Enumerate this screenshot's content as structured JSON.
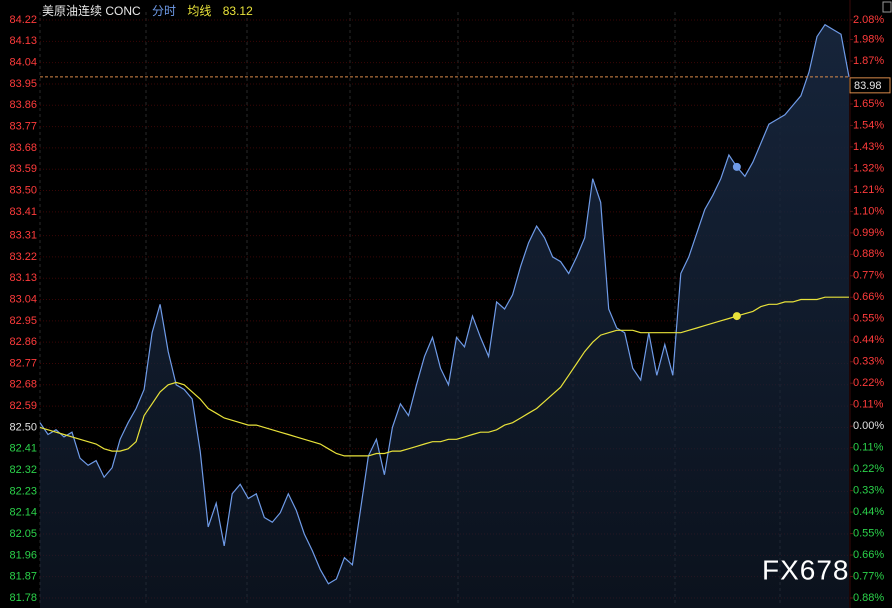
{
  "chart_data": {
    "type": "line",
    "title": "美原油连续 CONC",
    "legend_value": 83.12,
    "last_price": 83.98,
    "watermark": "FX678",
    "up_color": "#ff3b3b",
    "down_color": "#2bd24a",
    "flat_color": "#e0e0e0",
    "fill_color": "#16243a",
    "ylim": [
      81.78,
      84.22
    ],
    "yticks": [
      84.22,
      84.13,
      84.04,
      83.95,
      83.86,
      83.77,
      83.68,
      83.59,
      {
        "value": 83.5,
        "label": "83.50"
      },
      83.41,
      83.31,
      83.22,
      83.13,
      83.04,
      82.95,
      82.86,
      82.77,
      82.68,
      82.59,
      {
        "value": 82.5,
        "label": "82.50"
      },
      82.41,
      82.32,
      82.23,
      82.14,
      82.05,
      81.96,
      81.87,
      81.78
    ],
    "y2lim": [
      -0.88,
      2.08
    ],
    "y2ticks": [
      {
        "value": 2.08,
        "label": "2.08%"
      },
      {
        "value": 1.98,
        "label": "1.98%"
      },
      {
        "value": 1.87,
        "label": "1.87%"
      },
      {
        "value": 1.76,
        "label": "1.76%"
      },
      {
        "value": 1.65,
        "label": "1.65%"
      },
      {
        "value": 1.54,
        "label": "1.54%"
      },
      {
        "value": 1.43,
        "label": "1.43%"
      },
      {
        "value": 1.32,
        "label": "1.32%"
      },
      {
        "value": 1.21,
        "label": "1.21%"
      },
      {
        "value": 1.1,
        "label": "1.10%"
      },
      {
        "value": 0.99,
        "label": "0.99%"
      },
      {
        "value": 0.88,
        "label": "0.88%"
      },
      {
        "value": 0.77,
        "label": "0.77%"
      },
      {
        "value": 0.66,
        "label": "0.66%"
      },
      {
        "value": 0.55,
        "label": "0.55%"
      },
      {
        "value": 0.44,
        "label": "0.44%"
      },
      {
        "value": 0.33,
        "label": "0.33%"
      },
      {
        "value": 0.22,
        "label": "0.22%"
      },
      {
        "value": 0.11,
        "label": "0.11%"
      },
      {
        "value": 0,
        "label": "0.00%"
      },
      {
        "value": -0.11,
        "label": "0.11%"
      },
      {
        "value": -0.22,
        "label": "0.22%"
      },
      {
        "value": -0.33,
        "label": "0.33%"
      },
      {
        "value": -0.44,
        "label": "0.44%"
      },
      {
        "value": -0.55,
        "label": "0.55%"
      },
      {
        "value": -0.66,
        "label": "0.66%"
      },
      {
        "value": -0.77,
        "label": "0.77%"
      },
      {
        "value": -0.88,
        "label": "0.88%"
      }
    ],
    "grid": true,
    "series": [
      {
        "name": "分时",
        "color": "#6f9be8",
        "values": [
          82.52,
          82.47,
          82.49,
          82.46,
          82.48,
          82.37,
          82.34,
          82.36,
          82.29,
          82.33,
          82.45,
          82.52,
          82.58,
          82.66,
          82.9,
          83.02,
          82.82,
          82.68,
          82.66,
          82.62,
          82.4,
          82.08,
          82.18,
          82.0,
          82.22,
          82.26,
          82.2,
          82.22,
          82.12,
          82.1,
          82.14,
          82.22,
          82.15,
          82.05,
          81.98,
          81.9,
          81.84,
          81.86,
          81.95,
          81.92,
          82.15,
          82.38,
          82.45,
          82.3,
          82.5,
          82.6,
          82.55,
          82.68,
          82.8,
          82.88,
          82.75,
          82.68,
          82.88,
          82.84,
          82.97,
          82.88,
          82.8,
          83.03,
          83.0,
          83.06,
          83.18,
          83.28,
          83.35,
          83.3,
          83.22,
          83.2,
          83.15,
          83.22,
          83.3,
          83.55,
          83.45,
          83.0,
          82.92,
          82.9,
          82.75,
          82.7,
          82.9,
          82.72,
          82.85,
          82.72,
          83.15,
          83.22,
          83.32,
          83.42,
          83.48,
          83.55,
          83.65,
          83.6,
          83.56,
          83.62,
          83.7,
          83.78,
          83.8,
          83.82,
          83.86,
          83.9,
          84.0,
          84.15,
          84.2,
          84.18,
          84.16,
          83.98
        ]
      },
      {
        "name": "均线",
        "color": "#e8e23a",
        "values": [
          82.5,
          82.49,
          82.48,
          82.47,
          82.46,
          82.45,
          82.44,
          82.43,
          82.41,
          82.4,
          82.4,
          82.41,
          82.44,
          82.55,
          82.6,
          82.65,
          82.68,
          82.69,
          82.68,
          82.65,
          82.62,
          82.58,
          82.56,
          82.54,
          82.53,
          82.52,
          82.51,
          82.51,
          82.5,
          82.49,
          82.48,
          82.47,
          82.46,
          82.45,
          82.44,
          82.43,
          82.41,
          82.39,
          82.38,
          82.38,
          82.38,
          82.38,
          82.39,
          82.39,
          82.4,
          82.4,
          82.41,
          82.42,
          82.43,
          82.44,
          82.44,
          82.45,
          82.45,
          82.46,
          82.47,
          82.48,
          82.48,
          82.49,
          82.51,
          82.52,
          82.54,
          82.56,
          82.58,
          82.61,
          82.64,
          82.67,
          82.72,
          82.77,
          82.82,
          82.86,
          82.89,
          82.9,
          82.91,
          82.91,
          82.91,
          82.9,
          82.9,
          82.9,
          82.9,
          82.9,
          82.9,
          82.91,
          82.92,
          82.93,
          82.94,
          82.95,
          82.96,
          82.97,
          82.98,
          82.99,
          83.01,
          83.02,
          83.02,
          83.03,
          83.03,
          83.04,
          83.04,
          83.04,
          83.05,
          83.05,
          83.05,
          83.05
        ]
      }
    ]
  }
}
